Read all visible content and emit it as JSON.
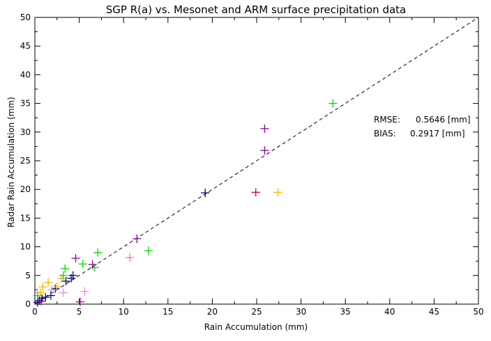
{
  "chart_data": {
    "type": "scatter",
    "title": "SGP R(a) vs. Mesonet and ARM surface precipitation data",
    "xlabel": "Rain Accumulation (mm)",
    "ylabel": "Radar Rain Accumulation (mm)",
    "xlim": [
      0,
      50
    ],
    "ylim": [
      0,
      50
    ],
    "xticks": [
      "0",
      "5",
      "10",
      "15",
      "20",
      "25",
      "30",
      "35",
      "40",
      "45",
      "50"
    ],
    "yticks": [
      "0",
      "5",
      "10",
      "15",
      "20",
      "25",
      "30",
      "35",
      "40",
      "45",
      "50"
    ],
    "grid": false,
    "reference_line": {
      "style": "dashed",
      "from": [
        0,
        0
      ],
      "to": [
        50,
        50
      ]
    },
    "stats": [
      {
        "label": "RMSE:",
        "value": "0.5646 [mm]"
      },
      {
        "label": "BIAS:",
        "value": "0.2917 [mm]"
      }
    ],
    "marker": "plus",
    "points": [
      {
        "x": 0.3,
        "y": 0.3,
        "color": "#000080"
      },
      {
        "x": 0.5,
        "y": 0.6,
        "color": "#000080"
      },
      {
        "x": 0.8,
        "y": 1.0,
        "color": "#000080"
      },
      {
        "x": 1.2,
        "y": 1.2,
        "color": "#000080"
      },
      {
        "x": 1.8,
        "y": 1.5,
        "color": "#000080"
      },
      {
        "x": 2.3,
        "y": 2.7,
        "color": "#000080"
      },
      {
        "x": 3.5,
        "y": 4.0,
        "color": "#000080"
      },
      {
        "x": 4.1,
        "y": 4.5,
        "color": "#000080"
      },
      {
        "x": 4.3,
        "y": 5.0,
        "color": "#000080"
      },
      {
        "x": 19.2,
        "y": 19.4,
        "color": "#000080"
      },
      {
        "x": 0.7,
        "y": 0.5,
        "color": "#c00040"
      },
      {
        "x": 24.9,
        "y": 19.5,
        "color": "#c00040"
      },
      {
        "x": 0.6,
        "y": 2.0,
        "color": "#ffb000"
      },
      {
        "x": 0.9,
        "y": 3.0,
        "color": "#ffb000"
      },
      {
        "x": 1.5,
        "y": 3.8,
        "color": "#ffb000"
      },
      {
        "x": 2.5,
        "y": 3.0,
        "color": "#ffb000"
      },
      {
        "x": 3.0,
        "y": 4.5,
        "color": "#ffb000"
      },
      {
        "x": 27.4,
        "y": 19.5,
        "color": "#ffb000"
      },
      {
        "x": 0.3,
        "y": 1.5,
        "color": "#00dd00"
      },
      {
        "x": 3.2,
        "y": 5.0,
        "color": "#00dd00"
      },
      {
        "x": 3.4,
        "y": 6.2,
        "color": "#00dd00"
      },
      {
        "x": 5.4,
        "y": 7.0,
        "color": "#00dd00"
      },
      {
        "x": 6.7,
        "y": 6.4,
        "color": "#00dd00"
      },
      {
        "x": 7.1,
        "y": 9.0,
        "color": "#00dd00"
      },
      {
        "x": 12.8,
        "y": 9.3,
        "color": "#00dd00"
      },
      {
        "x": 33.6,
        "y": 35.0,
        "color": "#00dd00"
      },
      {
        "x": 4.6,
        "y": 8.0,
        "color": "#9000a0"
      },
      {
        "x": 5.1,
        "y": 0.4,
        "color": "#9000a0"
      },
      {
        "x": 6.5,
        "y": 6.9,
        "color": "#9000a0"
      },
      {
        "x": 11.5,
        "y": 11.4,
        "color": "#9000a0"
      },
      {
        "x": 25.9,
        "y": 30.6,
        "color": "#9000a0"
      },
      {
        "x": 25.9,
        "y": 26.8,
        "color": "#9000a0"
      },
      {
        "x": 1.9,
        "y": 2.5,
        "color": "#ee88ee"
      },
      {
        "x": 3.2,
        "y": 2.0,
        "color": "#ee88ee"
      },
      {
        "x": 5.6,
        "y": 2.2,
        "color": "#ee88ee"
      },
      {
        "x": 10.7,
        "y": 8.1,
        "color": "#ff7070"
      }
    ]
  }
}
